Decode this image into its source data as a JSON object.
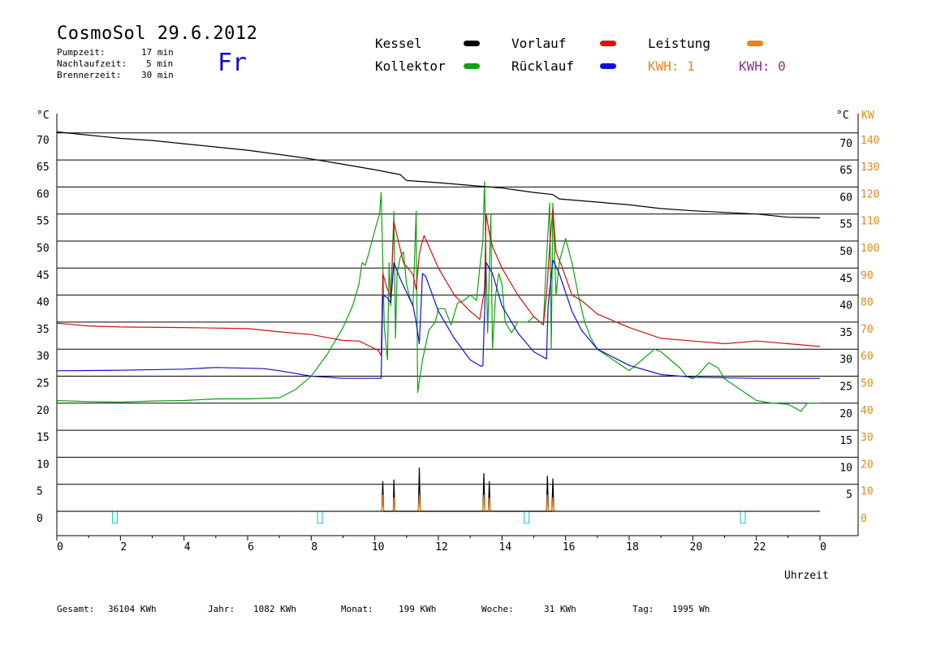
{
  "header": {
    "title": "CosmoSol 29.6.2012",
    "day": "Fr",
    "info": [
      {
        "label": "Pumpzeit:",
        "value": "17 min"
      },
      {
        "label": "Nachlaufzeit:",
        "value": "5 min"
      },
      {
        "label": "Brennerzeit:",
        "value": "30 min"
      }
    ]
  },
  "legend": {
    "kessel": {
      "label": "Kessel",
      "color": "#000000"
    },
    "vorlauf": {
      "label": "Vorlauf",
      "color": "#d01010"
    },
    "leistung": {
      "label": "Leistung",
      "color": "#f08010"
    },
    "kollektor": {
      "label": "Kollektor",
      "color": "#10a010"
    },
    "ruecklauf": {
      "label": "Rücklauf",
      "color": "#1010d0"
    },
    "kwh1": {
      "label": "KWH: 1",
      "color": "#e08a1c"
    },
    "kwh2": {
      "label": "KWH: 0",
      "color": "#8a3090"
    }
  },
  "footer": {
    "gesamt_label": "Gesamt:",
    "gesamt_value": "36104 KWh",
    "jahr_label": "Jahr:",
    "jahr_value": "1082 KWh",
    "monat_label": "Monat:",
    "monat_value": "199 KWh",
    "woche_label": "Woche:",
    "woche_value": "31 KWh",
    "tag_label": "Tag:",
    "tag_value": "1995 Wh"
  },
  "chart_data": {
    "type": "line",
    "xlabel": "Uhrzeit",
    "x_ticks": [
      "0",
      "2",
      "4",
      "6",
      "8",
      "10",
      "12",
      "14",
      "16",
      "18",
      "20",
      "22",
      "0"
    ],
    "xlim": [
      0,
      24
    ],
    "y_left_unit": "°C",
    "y_right_unit": "°C",
    "y_right2_unit": "KW",
    "ylim": [
      0,
      75
    ],
    "y_ticks": [
      0,
      5,
      10,
      15,
      20,
      25,
      30,
      35,
      40,
      45,
      50,
      55,
      60,
      65,
      70
    ],
    "y_ticks_left_labels": [
      "0",
      "5",
      "10",
      "15",
      "20",
      "25",
      "30",
      "35",
      "40",
      "45",
      "50",
      "55",
      "60",
      "65",
      "70"
    ],
    "y_ticks_right_labels": [
      "",
      "5",
      "10",
      "15",
      "20",
      "25",
      "30",
      "35",
      "40",
      "45",
      "50",
      "55",
      "60",
      "65",
      "70"
    ],
    "kw_ticks_labels": [
      "0",
      "10",
      "20",
      "30",
      "40",
      "50",
      "60",
      "70",
      "80",
      "90",
      "100",
      "110",
      "120",
      "130",
      "140"
    ],
    "grid": true,
    "series": [
      {
        "name": "Kessel",
        "color": "#000000",
        "points": [
          [
            0,
            70.2
          ],
          [
            1,
            69.6
          ],
          [
            2,
            69.0
          ],
          [
            3,
            68.6
          ],
          [
            4,
            68.0
          ],
          [
            5,
            67.4
          ],
          [
            6,
            66.8
          ],
          [
            7,
            66.0
          ],
          [
            8,
            65.2
          ],
          [
            9,
            64.2
          ],
          [
            10,
            63.2
          ],
          [
            10.8,
            62.3
          ],
          [
            11.0,
            61.2
          ],
          [
            12,
            60.8
          ],
          [
            13,
            60.3
          ],
          [
            14,
            59.8
          ],
          [
            15,
            59.0
          ],
          [
            15.6,
            58.6
          ],
          [
            15.8,
            57.8
          ],
          [
            17,
            57.2
          ],
          [
            18,
            56.7
          ],
          [
            19,
            56.0
          ],
          [
            20,
            55.6
          ],
          [
            21,
            55.3
          ],
          [
            22,
            55.0
          ],
          [
            23,
            54.4
          ],
          [
            24,
            54.3
          ]
        ]
      },
      {
        "name": "Vorlauf",
        "color": "#d01010",
        "points": [
          [
            0,
            34.8
          ],
          [
            1,
            34.3
          ],
          [
            2,
            34.1
          ],
          [
            4,
            34.0
          ],
          [
            6,
            33.8
          ],
          [
            7,
            33.2
          ],
          [
            8,
            32.7
          ],
          [
            9,
            31.6
          ],
          [
            9.5,
            31.5
          ],
          [
            10.1,
            29.8
          ],
          [
            10.2,
            28.8
          ],
          [
            10.25,
            44.0
          ],
          [
            10.4,
            41.0
          ],
          [
            10.5,
            39.5
          ],
          [
            10.6,
            53.5
          ],
          [
            10.9,
            46.0
          ],
          [
            11.2,
            43.8
          ],
          [
            11.3,
            41.0
          ],
          [
            11.4,
            47.5
          ],
          [
            11.45,
            49.0
          ],
          [
            11.55,
            51.0
          ],
          [
            12.0,
            45.0
          ],
          [
            12.5,
            40.0
          ],
          [
            13.0,
            37.0
          ],
          [
            13.3,
            35.5
          ],
          [
            13.45,
            41.0
          ],
          [
            13.5,
            55.0
          ],
          [
            13.6,
            51.5
          ],
          [
            13.7,
            49.0
          ],
          [
            14.0,
            45.0
          ],
          [
            14.5,
            40.0
          ],
          [
            15.0,
            36.0
          ],
          [
            15.3,
            34.5
          ],
          [
            15.4,
            40.0
          ],
          [
            15.5,
            49.0
          ],
          [
            15.6,
            56.0
          ],
          [
            15.7,
            48.0
          ],
          [
            15.9,
            45.0
          ],
          [
            16.2,
            40.0
          ],
          [
            16.5,
            39.0
          ],
          [
            17,
            36.5
          ],
          [
            18,
            34.0
          ],
          [
            19,
            32.0
          ],
          [
            20,
            31.5
          ],
          [
            21,
            31.0
          ],
          [
            22,
            31.5
          ],
          [
            23,
            31.0
          ],
          [
            24,
            30.5
          ]
        ]
      },
      {
        "name": "Rücklauf",
        "color": "#1010d0",
        "points": [
          [
            0,
            26.0
          ],
          [
            2,
            26.1
          ],
          [
            4,
            26.3
          ],
          [
            5,
            26.6
          ],
          [
            6.5,
            26.4
          ],
          [
            7,
            26.0
          ],
          [
            8,
            25.0
          ],
          [
            9,
            24.6
          ],
          [
            10.2,
            24.6
          ],
          [
            10.25,
            40.0
          ],
          [
            10.4,
            39.5
          ],
          [
            10.5,
            38.5
          ],
          [
            10.6,
            46.0
          ],
          [
            10.8,
            43.0
          ],
          [
            11.2,
            38.0
          ],
          [
            11.3,
            35.0
          ],
          [
            11.4,
            31.0
          ],
          [
            11.5,
            44.0
          ],
          [
            11.6,
            43.5
          ],
          [
            12.0,
            37.0
          ],
          [
            12.5,
            32.0
          ],
          [
            13.0,
            28.0
          ],
          [
            13.35,
            26.8
          ],
          [
            13.4,
            27.0
          ],
          [
            13.5,
            46.0
          ],
          [
            13.7,
            44.0
          ],
          [
            14.0,
            38.0
          ],
          [
            14.5,
            33.0
          ],
          [
            15.0,
            29.5
          ],
          [
            15.4,
            28.2
          ],
          [
            15.45,
            38.0
          ],
          [
            15.6,
            46.5
          ],
          [
            15.8,
            44.0
          ],
          [
            16.2,
            37.0
          ],
          [
            16.5,
            33.5
          ],
          [
            17,
            30.0
          ],
          [
            18,
            27.0
          ],
          [
            19,
            25.3
          ],
          [
            20,
            24.8
          ],
          [
            22,
            24.6
          ],
          [
            24,
            24.6
          ]
        ]
      },
      {
        "name": "Kollektor",
        "color": "#10a010",
        "points": [
          [
            0,
            20.5
          ],
          [
            1,
            20.3
          ],
          [
            2,
            20.2
          ],
          [
            3,
            20.4
          ],
          [
            4,
            20.5
          ],
          [
            5,
            20.8
          ],
          [
            6,
            20.8
          ],
          [
            7,
            21.0
          ],
          [
            7.5,
            22.5
          ],
          [
            8,
            25.0
          ],
          [
            8.5,
            29.0
          ],
          [
            9,
            34.0
          ],
          [
            9.3,
            38.0
          ],
          [
            9.5,
            42.0
          ],
          [
            9.6,
            46.0
          ],
          [
            9.7,
            45.5
          ],
          [
            9.8,
            47.5
          ],
          [
            10,
            52.0
          ],
          [
            10.15,
            55.0
          ],
          [
            10.2,
            59.0
          ],
          [
            10.3,
            34.0
          ],
          [
            10.4,
            28.0
          ],
          [
            10.45,
            46.0
          ],
          [
            10.5,
            38.0
          ],
          [
            10.6,
            55.5
          ],
          [
            10.65,
            32.0
          ],
          [
            10.7,
            44.0
          ],
          [
            10.8,
            47.0
          ],
          [
            10.9,
            48.0
          ],
          [
            11.0,
            42.0
          ],
          [
            11.1,
            39.5
          ],
          [
            11.2,
            38.0
          ],
          [
            11.3,
            55.5
          ],
          [
            11.35,
            22.0
          ],
          [
            11.5,
            28.0
          ],
          [
            11.7,
            33.5
          ],
          [
            11.9,
            35.0
          ],
          [
            12.0,
            37.5
          ],
          [
            12.2,
            37.5
          ],
          [
            12.4,
            34.5
          ],
          [
            12.6,
            38.5
          ],
          [
            12.8,
            39.0
          ],
          [
            13.0,
            40.0
          ],
          [
            13.2,
            39.0
          ],
          [
            13.3,
            45.0
          ],
          [
            13.4,
            50.0
          ],
          [
            13.45,
            61.0
          ],
          [
            13.5,
            45.0
          ],
          [
            13.55,
            33.0
          ],
          [
            13.65,
            55.0
          ],
          [
            13.7,
            30.0
          ],
          [
            13.8,
            40.0
          ],
          [
            13.9,
            44.0
          ],
          [
            14.0,
            42.0
          ],
          [
            14.1,
            35.0
          ],
          [
            14.3,
            33.0
          ],
          [
            14.5,
            35.0
          ],
          [
            14.8,
            35.0
          ],
          [
            15.0,
            36.0
          ],
          [
            15.2,
            35.0
          ],
          [
            15.3,
            34.5
          ],
          [
            15.4,
            47.0
          ],
          [
            15.5,
            57.0
          ],
          [
            15.55,
            30.0
          ],
          [
            15.6,
            57.0
          ],
          [
            15.7,
            40.0
          ],
          [
            15.8,
            46.0
          ],
          [
            16.0,
            50.5
          ],
          [
            16.2,
            46.0
          ],
          [
            16.4,
            40.0
          ],
          [
            16.6,
            35.0
          ],
          [
            16.8,
            32.0
          ],
          [
            17.0,
            30.0
          ],
          [
            17.5,
            28.0
          ],
          [
            18.0,
            26.0
          ],
          [
            18.5,
            28.5
          ],
          [
            18.8,
            30.0
          ],
          [
            19.0,
            29.5
          ],
          [
            19.3,
            28.0
          ],
          [
            19.6,
            26.5
          ],
          [
            19.8,
            25.0
          ],
          [
            20.0,
            24.5
          ],
          [
            20.2,
            25.5
          ],
          [
            20.5,
            27.5
          ],
          [
            20.8,
            26.5
          ],
          [
            21.0,
            24.5
          ],
          [
            21.5,
            22.5
          ],
          [
            22.0,
            20.5
          ],
          [
            22.5,
            20.0
          ],
          [
            23.0,
            19.8
          ],
          [
            23.4,
            18.5
          ],
          [
            23.6,
            20.0
          ],
          [
            24,
            20.0
          ]
        ]
      },
      {
        "name": "Leistung",
        "color": "#f08010",
        "points": [
          [
            10.22,
            0
          ],
          [
            10.25,
            3.0
          ],
          [
            10.28,
            0
          ],
          [
            10.58,
            0
          ],
          [
            10.6,
            2.5
          ],
          [
            10.63,
            0
          ],
          [
            11.37,
            0
          ],
          [
            11.4,
            3.0
          ],
          [
            11.43,
            0
          ],
          [
            13.4,
            0
          ],
          [
            13.43,
            3.0
          ],
          [
            13.46,
            0
          ],
          [
            13.57,
            0
          ],
          [
            13.6,
            2.5
          ],
          [
            13.63,
            0
          ],
          [
            15.4,
            0
          ],
          [
            15.43,
            3.0
          ],
          [
            15.46,
            0
          ],
          [
            15.57,
            0
          ],
          [
            15.6,
            2.5
          ],
          [
            15.63,
            0
          ]
        ]
      },
      {
        "name": "Brenner",
        "color": "#000000",
        "points": [
          [
            10.22,
            0
          ],
          [
            10.25,
            5.5
          ],
          [
            10.28,
            0
          ],
          [
            10.58,
            0
          ],
          [
            10.6,
            5.8
          ],
          [
            10.63,
            0
          ],
          [
            11.37,
            0
          ],
          [
            11.4,
            8.0
          ],
          [
            11.43,
            0
          ],
          [
            13.4,
            0
          ],
          [
            13.43,
            7.0
          ],
          [
            13.46,
            0
          ],
          [
            13.57,
            0
          ],
          [
            13.6,
            5.5
          ],
          [
            13.63,
            0
          ],
          [
            15.4,
            0
          ],
          [
            15.43,
            6.5
          ],
          [
            15.46,
            0
          ],
          [
            15.57,
            0
          ],
          [
            15.6,
            6.0
          ],
          [
            15.63,
            0
          ]
        ]
      },
      {
        "name": "Pumpe",
        "color": "#30d0d0",
        "points": [
          [
            0,
            0
          ],
          [
            1.75,
            0
          ],
          [
            1.75,
            -2.2
          ],
          [
            1.9,
            -2.2
          ],
          [
            1.9,
            0
          ],
          [
            8.2,
            0
          ],
          [
            8.2,
            -2.2
          ],
          [
            8.35,
            -2.2
          ],
          [
            8.35,
            0
          ],
          [
            14.7,
            0
          ],
          [
            14.7,
            -2.2
          ],
          [
            14.85,
            -2.2
          ],
          [
            14.85,
            0
          ],
          [
            21.5,
            0
          ],
          [
            21.5,
            -2.2
          ],
          [
            21.65,
            -2.2
          ],
          [
            21.65,
            0
          ],
          [
            24,
            0
          ]
        ]
      }
    ]
  }
}
